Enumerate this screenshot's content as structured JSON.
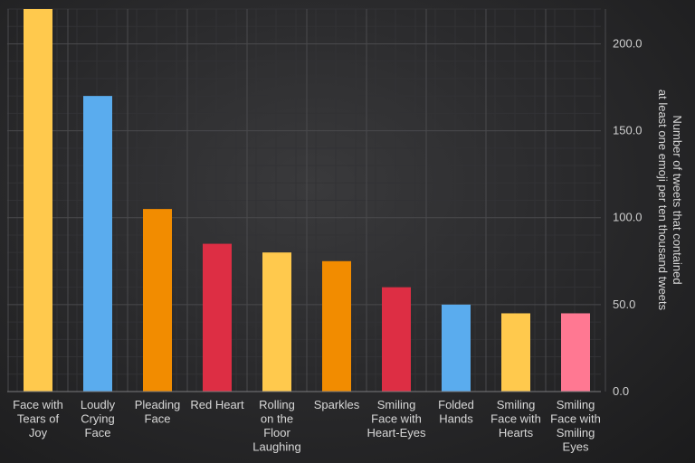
{
  "chart_data": {
    "type": "bar",
    "categories": [
      "Face with Tears of Joy",
      "Loudly Crying Face",
      "Pleading Face",
      "Red Heart",
      "Rolling on the Floor Laughing",
      "Sparkles",
      "Smiling Face with Heart-Eyes",
      "Folded Hands",
      "Smiling Face with Hearts",
      "Smiling Face with Smiling Eyes"
    ],
    "category_label_lines": [
      [
        "Face with",
        "Tears of",
        "Joy"
      ],
      [
        "Loudly",
        "Crying",
        "Face"
      ],
      [
        "Pleading",
        "Face"
      ],
      [
        "Red Heart"
      ],
      [
        "Rolling",
        "on the",
        "Floor",
        "Laughing"
      ],
      [
        "Sparkles"
      ],
      [
        "Smiling",
        "Face with",
        "Heart-Eyes"
      ],
      [
        "Folded",
        "Hands"
      ],
      [
        "Smiling",
        "Face with",
        "Hearts"
      ],
      [
        "Smiling",
        "Face with",
        "Smiling",
        "Eyes"
      ]
    ],
    "values": [
      220,
      170,
      105,
      85,
      80,
      75,
      60,
      50,
      45,
      45
    ],
    "colors": [
      "#ffc94d",
      "#5aacee",
      "#f28c00",
      "#dd2e44",
      "#ffc94d",
      "#f28c00",
      "#dd2e44",
      "#5aacee",
      "#ffc94d",
      "#ff7892"
    ],
    "title": "",
    "xlabel": "",
    "ylabel": "Number of tweets that contained at least one emoji per ten thousand tweets",
    "ylabel_lines": [
      "Number of tweets that contained",
      "at least one emoji per ten thousand tweets"
    ],
    "ylim": [
      0,
      220
    ],
    "y_ticks": [
      0,
      50,
      100,
      150,
      200
    ],
    "y_tick_labels": [
      "0.0",
      "50.0",
      "100.0",
      "150.0",
      "200.0"
    ],
    "y_axis_side": "right",
    "grid": true
  }
}
